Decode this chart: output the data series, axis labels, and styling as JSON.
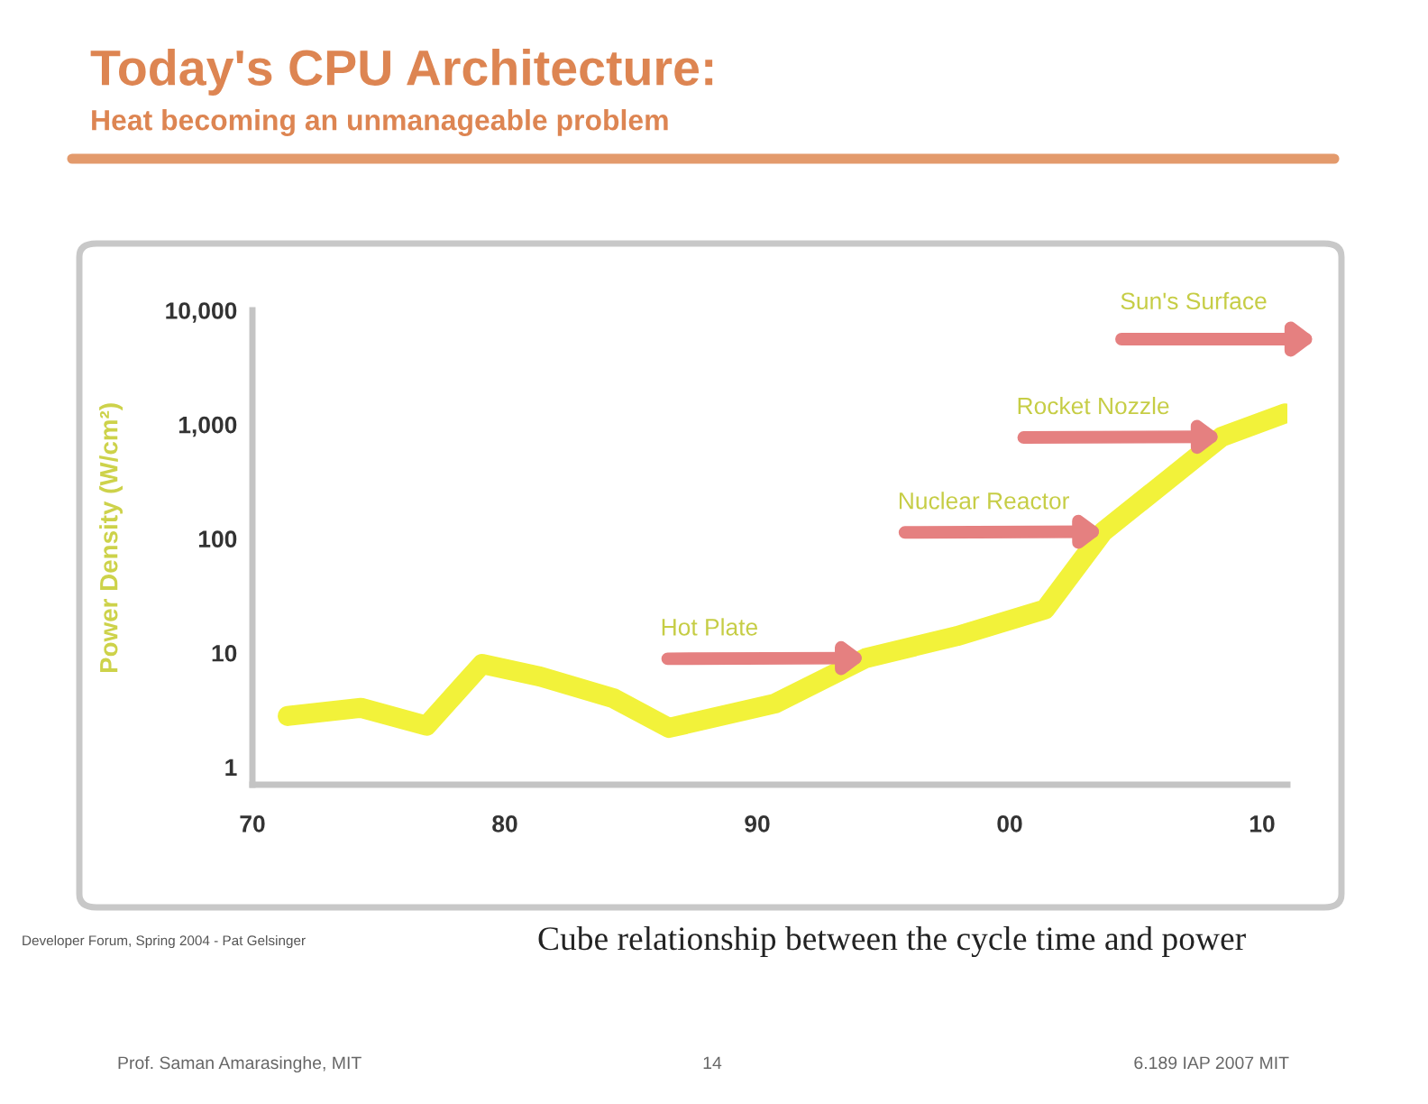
{
  "chart_data": {
    "type": "line",
    "title": "Today's CPU Architecture:",
    "subtitle": "Heat becoming an unmanageable problem",
    "ylabel": "Power Density (W/cm²)",
    "x": [
      1971.4,
      1974.3,
      1976.9,
      1979.1,
      1981.4,
      1984.3,
      1986.5,
      1990.7,
      1994.3,
      1997.9,
      2001.4,
      2003.7,
      2008.4,
      2010.9
    ],
    "series": [
      {
        "color": "#f2f23a",
        "values": [
          2.8,
          3.3,
          2.3,
          8,
          6.2,
          4,
          2.2,
          3.6,
          9,
          14,
          24,
          115,
          780,
          1250
        ]
      }
    ],
    "log": true,
    "xlim": [
      1970,
      2011
    ],
    "ylim": [
      0.7,
      10000
    ],
    "xticks": [
      {
        "value": 1970,
        "label": "70"
      },
      {
        "value": 1980,
        "label": "80"
      },
      {
        "value": 1990,
        "label": "90"
      },
      {
        "value": 2000,
        "label": "00"
      },
      {
        "value": 2010,
        "label": "10"
      }
    ],
    "yticks": [
      1,
      10,
      100,
      {
        "value": 1000,
        "label": "1,000"
      },
      {
        "value": 10000,
        "label": "10,000"
      }
    ],
    "line_style": "solid",
    "annotations": [
      {
        "text": "Hot Plate",
        "x": 1994.3,
        "y": 9
      },
      {
        "text": "Nuclear Reactor",
        "x": 2003.7,
        "y": 115
      },
      {
        "text": "Rocket Nozzle",
        "x": 2008.4,
        "y": 780
      },
      "Sun's Surface",
      "Developer Forum, Spring 2004 - Pat Gelsinger",
      "Cube relationship between the cycle time and power",
      "Prof. Saman Amarasinghe, MIT",
      "14",
      "6.189 IAP 2007 MIT"
    ]
  }
}
